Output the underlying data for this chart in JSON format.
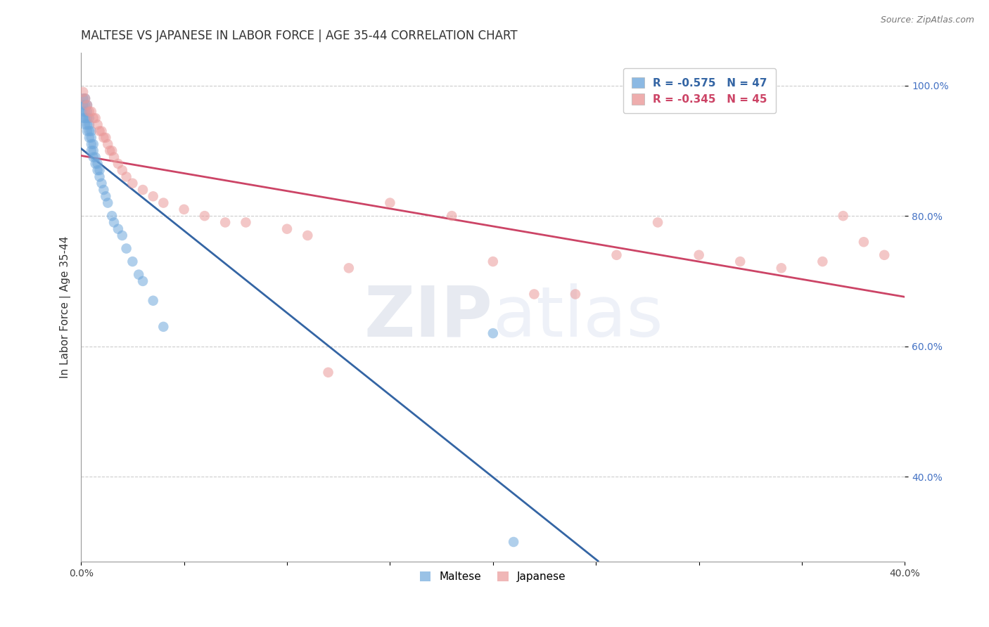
{
  "title": "MALTESE VS JAPANESE IN LABOR FORCE | AGE 35-44 CORRELATION CHART",
  "source": "Source: ZipAtlas.com",
  "ylabel": "In Labor Force | Age 35-44",
  "xlim": [
    0.0,
    0.4
  ],
  "ylim": [
    0.27,
    1.05
  ],
  "yticks": [
    0.4,
    0.6,
    0.8,
    1.0
  ],
  "ytick_labels": [
    "40.0%",
    "60.0%",
    "80.0%",
    "100.0%"
  ],
  "xticks": [
    0.0,
    0.05,
    0.1,
    0.15,
    0.2,
    0.25,
    0.3,
    0.35,
    0.4
  ],
  "xtick_labels": [
    "0.0%",
    "",
    "",
    "",
    "",
    "",
    "",
    "",
    "40.0%"
  ],
  "maltese_R": -0.575,
  "maltese_N": 47,
  "japanese_R": -0.345,
  "japanese_N": 45,
  "maltese_color": "#6fa8dc",
  "japanese_color": "#ea9999",
  "maltese_line_color": "#3465a4",
  "japanese_line_color": "#cc4466",
  "grid_color": "#cccccc",
  "background_color": "#ffffff",
  "maltese_x": [
    0.001,
    0.001,
    0.001,
    0.001,
    0.002,
    0.002,
    0.002,
    0.002,
    0.002,
    0.003,
    0.003,
    0.003,
    0.003,
    0.003,
    0.004,
    0.004,
    0.004,
    0.004,
    0.005,
    0.005,
    0.005,
    0.005,
    0.006,
    0.006,
    0.006,
    0.007,
    0.007,
    0.008,
    0.008,
    0.009,
    0.009,
    0.01,
    0.011,
    0.012,
    0.013,
    0.015,
    0.016,
    0.018,
    0.02,
    0.022,
    0.025,
    0.028,
    0.03,
    0.035,
    0.04,
    0.2,
    0.21
  ],
  "maltese_y": [
    0.98,
    0.97,
    0.96,
    0.95,
    0.98,
    0.97,
    0.96,
    0.95,
    0.94,
    0.97,
    0.96,
    0.95,
    0.94,
    0.93,
    0.95,
    0.94,
    0.93,
    0.92,
    0.93,
    0.92,
    0.91,
    0.9,
    0.91,
    0.9,
    0.89,
    0.89,
    0.88,
    0.88,
    0.87,
    0.87,
    0.86,
    0.85,
    0.84,
    0.83,
    0.82,
    0.8,
    0.79,
    0.78,
    0.77,
    0.75,
    0.73,
    0.71,
    0.7,
    0.67,
    0.63,
    0.62,
    0.3
  ],
  "japanese_x": [
    0.001,
    0.002,
    0.003,
    0.004,
    0.005,
    0.006,
    0.007,
    0.008,
    0.009,
    0.01,
    0.011,
    0.012,
    0.013,
    0.014,
    0.015,
    0.016,
    0.018,
    0.02,
    0.022,
    0.025,
    0.03,
    0.035,
    0.04,
    0.05,
    0.06,
    0.07,
    0.08,
    0.1,
    0.11,
    0.12,
    0.13,
    0.15,
    0.18,
    0.2,
    0.22,
    0.24,
    0.26,
    0.28,
    0.3,
    0.32,
    0.34,
    0.36,
    0.37,
    0.38,
    0.39
  ],
  "japanese_y": [
    0.99,
    0.98,
    0.97,
    0.96,
    0.96,
    0.95,
    0.95,
    0.94,
    0.93,
    0.93,
    0.92,
    0.92,
    0.91,
    0.9,
    0.9,
    0.89,
    0.88,
    0.87,
    0.86,
    0.85,
    0.84,
    0.83,
    0.82,
    0.81,
    0.8,
    0.79,
    0.79,
    0.78,
    0.77,
    0.56,
    0.72,
    0.82,
    0.8,
    0.73,
    0.68,
    0.68,
    0.74,
    0.79,
    0.74,
    0.73,
    0.72,
    0.73,
    0.8,
    0.76,
    0.74
  ],
  "title_fontsize": 12,
  "axis_label_fontsize": 11,
  "tick_fontsize": 10,
  "legend_fontsize": 11
}
